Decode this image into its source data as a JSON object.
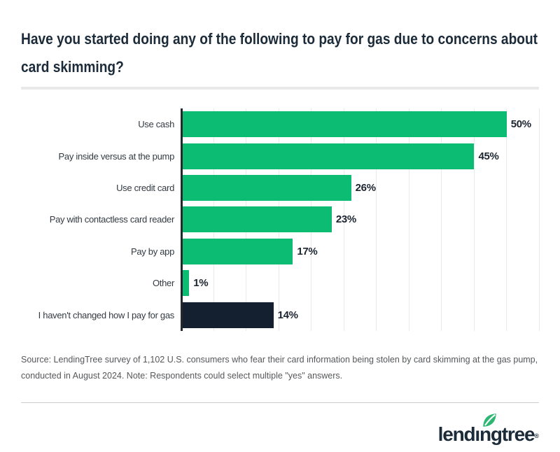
{
  "title": "Have you started doing any of the following to pay for gas due to concerns about card skimming?",
  "title_lines": [
    "Have you started doing any of the following to pay for gas due to concerns about",
    "card skimming?"
  ],
  "chart_data": {
    "type": "bar",
    "orientation": "horizontal",
    "title": "Have you started doing any of the following to pay for gas due to concerns about card skimming?",
    "categories": [
      "Use cash",
      "Pay inside versus at the pump",
      "Use credit card",
      "Pay with contactless card reader",
      "Pay by app",
      "Other",
      "I haven't changed how I pay for gas"
    ],
    "values": [
      50,
      45,
      26,
      23,
      17,
      1,
      14
    ],
    "value_labels": [
      "50%",
      "45%",
      "26%",
      "23%",
      "17%",
      "1%",
      "14%"
    ],
    "xlim": [
      0,
      55
    ],
    "gridline_interval": 5,
    "grid": true,
    "legend": false,
    "bar_color": "#0cbc72",
    "highlight_color": "#14202f",
    "highlight_index": 6,
    "axis_color": "#23282e",
    "value_label_color": "#1c2430"
  },
  "source_note": "Source: LendingTree survey of 1,102 U.S. consumers who fear their card information being stolen by card skimming at the gas pump, conducted in August 2024. Note: Respondents could select multiple \"yes\" answers.",
  "footer": {
    "logo": {
      "text": "lendingtree",
      "pre": "lend",
      "dotless_i": "ı",
      "post": "ngtree",
      "registered": "®",
      "text_color": "#1c2b39",
      "leaf_color": "#2eb673"
    }
  }
}
